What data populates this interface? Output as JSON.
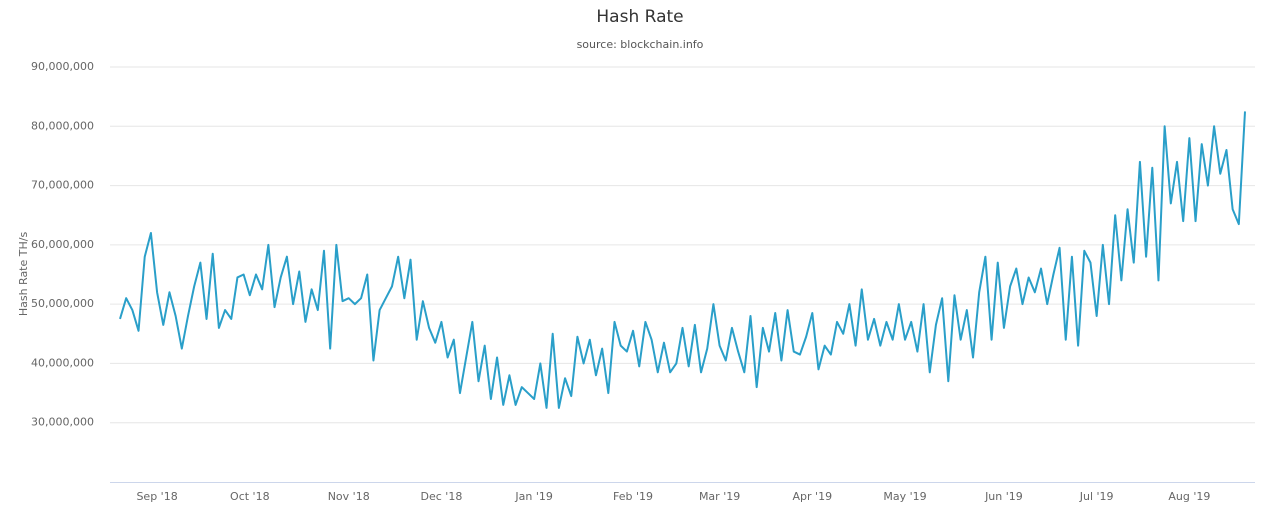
{
  "chart_data": {
    "type": "line",
    "title": "Hash Rate",
    "subtitle": "source: blockchain.info",
    "y_label": "Hash Rate TH/s",
    "categories": [
      null,
      null,
      null,
      null,
      null,
      null,
      "Sep '18",
      null,
      null,
      null,
      null,
      null,
      null,
      null,
      null,
      null,
      null,
      null,
      null,
      null,
      null,
      "Oct '18",
      null,
      null,
      null,
      null,
      null,
      null,
      null,
      null,
      null,
      null,
      null,
      null,
      null,
      null,
      null,
      "Nov '18",
      null,
      null,
      null,
      null,
      null,
      null,
      null,
      null,
      null,
      null,
      null,
      null,
      null,
      null,
      "Dec '18",
      null,
      null,
      null,
      null,
      null,
      null,
      null,
      null,
      null,
      null,
      null,
      null,
      null,
      null,
      "Jan '19",
      null,
      null,
      null,
      null,
      null,
      null,
      null,
      null,
      null,
      null,
      null,
      null,
      null,
      null,
      null,
      "Feb '19",
      null,
      null,
      null,
      null,
      null,
      null,
      null,
      null,
      null,
      null,
      null,
      null,
      null,
      "Mar '19",
      null,
      null,
      null,
      null,
      null,
      null,
      null,
      null,
      null,
      null,
      null,
      null,
      null,
      null,
      "Apr '19",
      null,
      null,
      null,
      null,
      null,
      null,
      null,
      null,
      null,
      null,
      null,
      null,
      null,
      null,
      "May '19",
      null,
      null,
      null,
      null,
      null,
      null,
      null,
      null,
      null,
      null,
      null,
      null,
      null,
      null,
      null,
      "Jun '19",
      null,
      null,
      null,
      null,
      null,
      null,
      null,
      null,
      null,
      null,
      null,
      null,
      null,
      null,
      "Jul '19",
      null,
      null,
      null,
      null,
      null,
      null,
      null,
      null,
      null,
      null,
      null,
      null,
      null,
      null,
      "Aug '19",
      null,
      null,
      null,
      null,
      null,
      null,
      null,
      null,
      null
    ],
    "values": [
      47500000,
      51000000,
      49000000,
      45500000,
      58000000,
      62000000,
      52000000,
      46500000,
      52000000,
      48000000,
      42500000,
      48000000,
      53000000,
      57000000,
      47500000,
      58500000,
      46000000,
      49000000,
      47500000,
      54500000,
      55000000,
      51500000,
      55000000,
      52500000,
      60000000,
      49500000,
      54500000,
      58000000,
      50000000,
      55500000,
      47000000,
      52500000,
      49000000,
      59000000,
      42500000,
      60000000,
      50500000,
      51000000,
      50000000,
      51000000,
      55000000,
      40500000,
      49000000,
      51000000,
      53000000,
      58000000,
      51000000,
      57500000,
      44000000,
      50500000,
      46000000,
      43500000,
      47000000,
      41000000,
      44000000,
      35000000,
      41000000,
      47000000,
      37000000,
      43000000,
      34000000,
      41000000,
      33000000,
      38000000,
      33000000,
      36000000,
      35000000,
      34000000,
      40000000,
      32500000,
      45000000,
      32500000,
      37500000,
      34500000,
      44500000,
      40000000,
      44000000,
      38000000,
      42500000,
      35000000,
      47000000,
      43000000,
      42000000,
      45500000,
      39500000,
      47000000,
      44000000,
      38500000,
      43500000,
      38500000,
      40000000,
      46000000,
      39500000,
      46500000,
      38500000,
      42500000,
      50000000,
      43000000,
      40500000,
      46000000,
      42000000,
      38500000,
      48000000,
      36000000,
      46000000,
      42000000,
      48500000,
      40500000,
      49000000,
      42000000,
      41500000,
      44500000,
      48500000,
      39000000,
      43000000,
      41500000,
      47000000,
      45000000,
      50000000,
      43000000,
      52500000,
      44000000,
      47500000,
      43000000,
      47000000,
      44000000,
      50000000,
      44000000,
      47000000,
      42000000,
      50000000,
      38500000,
      46500000,
      51000000,
      37000000,
      51500000,
      44000000,
      49000000,
      41000000,
      52000000,
      58000000,
      44000000,
      57000000,
      46000000,
      53000000,
      56000000,
      50000000,
      54500000,
      52000000,
      56000000,
      50000000,
      55000000,
      59500000,
      44000000,
      58000000,
      43000000,
      59000000,
      57000000,
      48000000,
      60000000,
      50000000,
      65000000,
      54000000,
      66000000,
      57000000,
      74000000,
      58000000,
      73000000,
      54000000,
      80000000,
      67000000,
      74000000,
      64000000,
      78000000,
      64000000,
      77000000,
      70000000,
      80000000,
      72000000,
      76000000,
      66000000,
      63500000,
      82500000
    ],
    "color": "#2a9fc9",
    "ylim": [
      20000000,
      90000000
    ],
    "yticks": [
      {
        "value": 30000000,
        "label": "30,000,000"
      },
      {
        "value": 40000000,
        "label": "40,000,000"
      },
      {
        "value": 50000000,
        "label": "50,000,000"
      },
      {
        "value": 60000000,
        "label": "60,000,000"
      },
      {
        "value": 70000000,
        "label": "70,000,000"
      },
      {
        "value": 80000000,
        "label": "80,000,000"
      },
      {
        "value": 90000000,
        "label": "90,000,000"
      }
    ],
    "grid": true
  }
}
